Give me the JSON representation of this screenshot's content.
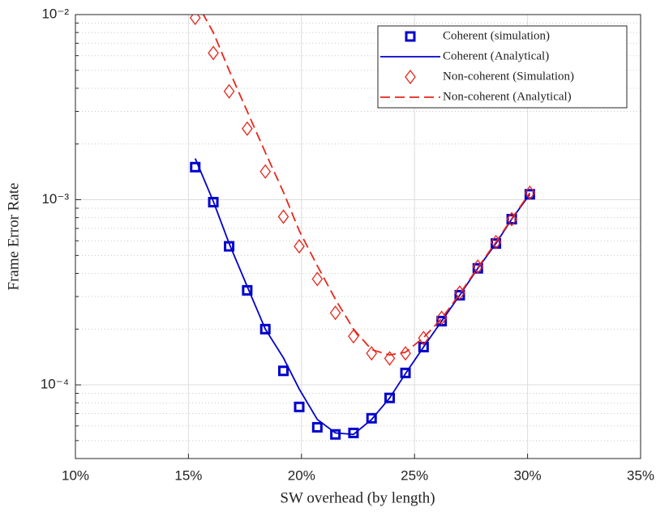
{
  "chart_data": {
    "type": "line",
    "xlabel": "SW overhead (by length)",
    "ylabel": "Frame Error Rate",
    "log_y": true,
    "grid": true,
    "legend": "upper right",
    "xlim": [
      10,
      35
    ],
    "xticks": [
      {
        "value": 10,
        "label": "10%"
      },
      {
        "value": 15,
        "label": "15%"
      },
      {
        "value": 20,
        "label": "20%"
      },
      {
        "value": 25,
        "label": "25%"
      },
      {
        "value": 30,
        "label": "30%"
      },
      {
        "value": 35,
        "label": "35%"
      }
    ],
    "ylim": [
      4e-05,
      0.01
    ],
    "yticks": [
      {
        "value": 0.0001,
        "label": "10⁻⁴"
      },
      {
        "value": 0.001,
        "label": "10⁻³"
      },
      {
        "value": 0.01,
        "label": "10⁻²"
      }
    ],
    "yminorticks": [
      5e-05,
      6e-05,
      7e-05,
      8e-05,
      9e-05,
      0.0002,
      0.0003,
      0.0004,
      0.0005,
      0.0006,
      0.0007,
      0.0008,
      0.0009,
      0.002,
      0.003,
      0.004,
      0.005,
      0.006,
      0.007,
      0.008,
      0.009
    ],
    "x": [
      15.3,
      16.1,
      16.8,
      17.6,
      18.4,
      19.2,
      19.9,
      20.7,
      21.5,
      22.3,
      23.1,
      23.9,
      24.6,
      25.4,
      26.2,
      27.0,
      27.8,
      28.6,
      29.3,
      30.1
    ],
    "series": [
      {
        "name": "Coherent (simulation)",
        "color": "#0000cc",
        "style": "square",
        "values": [
          0.0015,
          0.00097,
          0.00056,
          0.000324,
          0.0002,
          0.000119,
          7.6e-05,
          5.9e-05,
          5.4e-05,
          5.5e-05,
          6.6e-05,
          8.5e-05,
          0.000116,
          0.00016,
          0.000221,
          0.000305,
          0.000426,
          0.00058,
          0.000785,
          0.00107
        ]
      },
      {
        "name": "Coherent (Analytical)",
        "color": "#0000cc",
        "style": "solid",
        "values": [
          0.00167,
          0.00098,
          0.00058,
          0.00034,
          0.0002,
          0.00014,
          9.5e-05,
          6.5e-05,
          5.5e-05,
          5.4e-05,
          6.5e-05,
          8.5e-05,
          0.000115,
          0.00016,
          0.000221,
          0.000305,
          0.000426,
          0.00058,
          0.000785,
          0.00107
        ]
      },
      {
        "name": "Non-coherent (Simulation)",
        "color": "#e8261a",
        "style": "diamond",
        "values": [
          0.0096,
          0.0062,
          0.00385,
          0.00242,
          0.00142,
          0.00081,
          0.00056,
          0.000373,
          0.000245,
          0.000183,
          0.000148,
          0.000139,
          0.000148,
          0.000179,
          0.00023,
          0.000315,
          0.000435,
          0.00059,
          0.000785,
          0.00109
        ]
      },
      {
        "name": "Non-coherent (Analytical)",
        "color": "#e8261a",
        "style": "dashed",
        "values": [
          0.012,
          0.008,
          0.005,
          0.003,
          0.0018,
          0.0011,
          0.00068,
          0.00044,
          0.00029,
          0.0002,
          0.000155,
          0.000145,
          0.00015,
          0.00018,
          0.000228,
          0.00031,
          0.00043,
          0.00059,
          0.00079,
          0.00109
        ]
      }
    ]
  }
}
